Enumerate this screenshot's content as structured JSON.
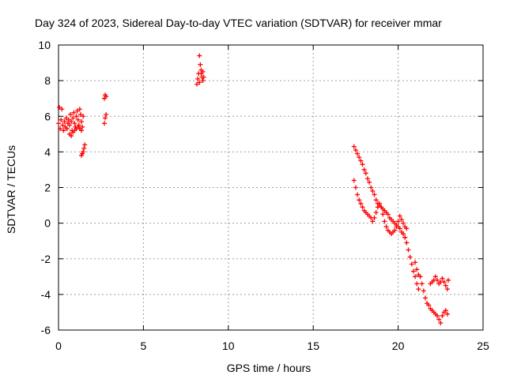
{
  "chart_data": {
    "type": "scatter",
    "title": "Day 324 of 2023, Sidereal Day-to-day VTEC variation (SDTVAR) for receiver mmar",
    "xlabel": "GPS time / hours",
    "ylabel": "SDTVAR / TECUs",
    "xlim": [
      0,
      25
    ],
    "ylim": [
      -6,
      10
    ],
    "xticks": [
      0,
      5,
      10,
      15,
      20,
      25
    ],
    "yticks": [
      -6,
      -4,
      -2,
      0,
      2,
      4,
      6,
      8,
      10
    ],
    "grid": true,
    "marker": "+",
    "color": "#ff0000",
    "segments": [
      {
        "name": "segment-1",
        "points": [
          [
            0.0,
            5.6
          ],
          [
            0.05,
            6.5
          ],
          [
            0.1,
            5.3
          ],
          [
            0.15,
            5.8
          ],
          [
            0.2,
            6.4
          ],
          [
            0.25,
            5.5
          ],
          [
            0.3,
            5.2
          ],
          [
            0.35,
            5.7
          ],
          [
            0.4,
            5.4
          ],
          [
            0.45,
            5.9
          ],
          [
            0.5,
            5.3
          ],
          [
            0.55,
            5.6
          ],
          [
            0.6,
            5.8
          ],
          [
            0.65,
            5.5
          ],
          [
            0.7,
            6.1
          ],
          [
            0.75,
            5.7
          ],
          [
            0.8,
            5.2
          ],
          [
            0.85,
            5.9
          ],
          [
            0.9,
            6.2
          ],
          [
            0.95,
            5.6
          ],
          [
            1.0,
            5.4
          ],
          [
            1.05,
            6.0
          ],
          [
            1.1,
            6.3
          ],
          [
            1.15,
            5.8
          ],
          [
            1.2,
            5.5
          ],
          [
            1.25,
            6.4
          ],
          [
            1.3,
            6.1
          ],
          [
            1.35,
            5.7
          ],
          [
            1.4,
            5.4
          ],
          [
            1.45,
            6.0
          ]
        ]
      },
      {
        "name": "segment-2",
        "points": [
          [
            0.65,
            5.0
          ],
          [
            0.75,
            4.9
          ],
          [
            0.85,
            5.1
          ],
          [
            0.95,
            5.2
          ],
          [
            1.05,
            5.3
          ],
          [
            1.15,
            5.4
          ],
          [
            1.25,
            5.3
          ],
          [
            1.35,
            5.2
          ]
        ]
      },
      {
        "name": "segment-3",
        "points": [
          [
            1.35,
            3.8
          ],
          [
            1.4,
            3.9
          ],
          [
            1.45,
            4.0
          ],
          [
            1.5,
            4.2
          ],
          [
            1.55,
            4.4
          ]
        ]
      },
      {
        "name": "segment-4",
        "points": [
          [
            2.7,
            5.6
          ],
          [
            2.75,
            5.9
          ],
          [
            2.8,
            6.1
          ],
          [
            2.7,
            7.0
          ],
          [
            2.75,
            7.2
          ],
          [
            2.8,
            7.1
          ]
        ]
      },
      {
        "name": "segment-5",
        "points": [
          [
            8.15,
            7.8
          ],
          [
            8.2,
            8.1
          ],
          [
            8.25,
            8.4
          ],
          [
            8.3,
            9.4
          ],
          [
            8.35,
            8.9
          ],
          [
            8.4,
            8.6
          ],
          [
            8.45,
            8.2
          ],
          [
            8.5,
            8.0
          ],
          [
            8.3,
            7.9
          ],
          [
            8.4,
            8.4
          ],
          [
            8.5,
            8.5
          ],
          [
            8.55,
            8.2
          ]
        ]
      },
      {
        "name": "segment-6",
        "points": [
          [
            17.4,
            4.3
          ],
          [
            17.5,
            4.1
          ],
          [
            17.6,
            3.9
          ],
          [
            17.7,
            3.7
          ],
          [
            17.8,
            3.5
          ],
          [
            17.9,
            3.3
          ],
          [
            18.0,
            3.0
          ],
          [
            18.1,
            2.8
          ],
          [
            18.2,
            2.5
          ],
          [
            18.3,
            2.3
          ],
          [
            18.4,
            2.0
          ],
          [
            18.5,
            1.8
          ],
          [
            18.6,
            1.6
          ],
          [
            18.7,
            1.3
          ],
          [
            18.8,
            1.1
          ],
          [
            18.9,
            1.0
          ],
          [
            19.0,
            0.9
          ],
          [
            19.1,
            0.8
          ],
          [
            19.2,
            0.7
          ],
          [
            19.3,
            0.6
          ],
          [
            19.4,
            0.5
          ],
          [
            19.5,
            0.3
          ],
          [
            19.6,
            0.2
          ],
          [
            19.7,
            0.1
          ],
          [
            19.8,
            0.0
          ],
          [
            19.9,
            -0.1
          ],
          [
            20.0,
            -0.2
          ],
          [
            20.1,
            -0.3
          ],
          [
            20.2,
            -0.5
          ],
          [
            20.3,
            -0.6
          ],
          [
            20.4,
            -0.8
          ]
        ]
      },
      {
        "name": "segment-7",
        "points": [
          [
            17.4,
            2.4
          ],
          [
            17.5,
            2.0
          ],
          [
            17.6,
            1.6
          ],
          [
            17.7,
            1.3
          ],
          [
            17.8,
            1.1
          ],
          [
            17.9,
            0.9
          ],
          [
            18.0,
            0.7
          ],
          [
            18.1,
            0.6
          ],
          [
            18.2,
            0.5
          ],
          [
            18.3,
            0.4
          ],
          [
            18.4,
            0.3
          ],
          [
            18.5,
            0.1
          ],
          [
            18.6,
            0.3
          ],
          [
            18.7,
            0.6
          ],
          [
            18.8,
            0.9
          ],
          [
            18.9,
            1.1
          ],
          [
            19.0,
            0.9
          ],
          [
            19.1,
            0.5
          ],
          [
            19.2,
            0.1
          ],
          [
            19.3,
            -0.2
          ],
          [
            19.4,
            -0.4
          ],
          [
            19.5,
            -0.5
          ],
          [
            19.6,
            -0.6
          ],
          [
            19.7,
            -0.5
          ],
          [
            19.8,
            -0.4
          ],
          [
            19.9,
            -0.2
          ],
          [
            20.0,
            0.1
          ],
          [
            20.1,
            0.4
          ],
          [
            20.2,
            0.2
          ],
          [
            20.3,
            0.0
          ],
          [
            20.4,
            -0.2
          ],
          [
            20.5,
            -0.3
          ]
        ]
      },
      {
        "name": "segment-8",
        "points": [
          [
            20.4,
            -0.8
          ],
          [
            20.5,
            -1.1
          ],
          [
            20.6,
            -1.5
          ],
          [
            20.7,
            -1.9
          ],
          [
            20.8,
            -2.3
          ],
          [
            20.9,
            -2.7
          ],
          [
            21.0,
            -3.0
          ],
          [
            21.1,
            -3.4
          ],
          [
            21.2,
            -3.7
          ],
          [
            21.0,
            -2.2
          ],
          [
            21.1,
            -2.6
          ],
          [
            21.2,
            -2.9
          ],
          [
            21.3,
            -3.0
          ],
          [
            21.4,
            -3.4
          ],
          [
            21.5,
            -3.8
          ],
          [
            21.6,
            -4.2
          ],
          [
            21.7,
            -4.5
          ],
          [
            21.8,
            -4.6
          ],
          [
            21.9,
            -4.8
          ],
          [
            22.0,
            -4.9
          ],
          [
            22.1,
            -5.0
          ],
          [
            22.2,
            -5.1
          ],
          [
            22.3,
            -5.2
          ],
          [
            22.4,
            -5.4
          ],
          [
            22.5,
            -5.6
          ],
          [
            22.6,
            -5.2
          ],
          [
            22.7,
            -5.0
          ],
          [
            22.8,
            -4.9
          ],
          [
            22.9,
            -5.1
          ]
        ]
      },
      {
        "name": "segment-9",
        "points": [
          [
            21.9,
            -3.4
          ],
          [
            22.0,
            -3.3
          ],
          [
            22.1,
            -3.2
          ],
          [
            22.2,
            -3.0
          ],
          [
            22.3,
            -3.2
          ],
          [
            22.4,
            -3.4
          ],
          [
            22.5,
            -3.3
          ],
          [
            22.6,
            -3.1
          ],
          [
            22.7,
            -3.3
          ],
          [
            22.8,
            -3.5
          ],
          [
            22.9,
            -3.7
          ],
          [
            22.95,
            -3.2
          ]
        ]
      }
    ]
  }
}
